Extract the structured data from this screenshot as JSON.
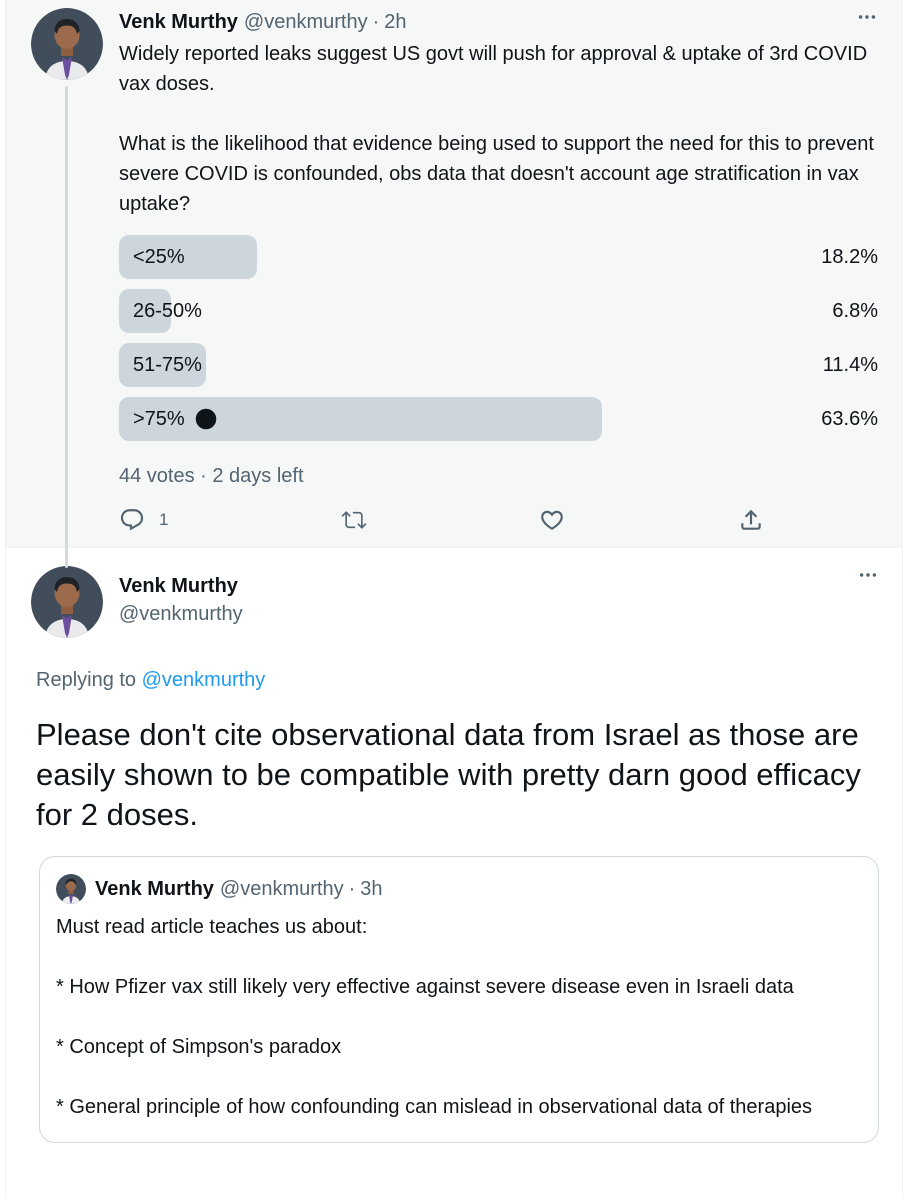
{
  "colors": {
    "link_blue": "#1d9bf0",
    "poll_bar": "#cdd6dc",
    "text_primary": "#0f1419",
    "text_secondary": "#536471",
    "hover_background": "#f6f7f7"
  },
  "tweet1": {
    "name": "Venk Murthy",
    "handle": "@venkmurthy",
    "dot": "·",
    "time": "2h",
    "body": "Widely reported leaks suggest US govt will push for approval & uptake of 3rd COVID vax doses.\n\nWhat is the likelihood that evidence being used to support the need for this to prevent severe COVID is confounded, obs data that doesn't account age stratification in vax uptake?",
    "poll": {
      "options": [
        {
          "label": "<25%",
          "pct": "18.2%",
          "value": 18.2,
          "voted": false
        },
        {
          "label": "26-50%",
          "pct": "6.8%",
          "value": 6.8,
          "voted": false
        },
        {
          "label": "51-75%",
          "pct": "11.4%",
          "value": 11.4,
          "voted": false
        },
        {
          "label": ">75%",
          "pct": "63.6%",
          "value": 63.6,
          "voted": true
        }
      ],
      "meta": "44 votes · 2 days left"
    },
    "actions": {
      "reply_count": "1"
    }
  },
  "tweet2": {
    "name": "Venk Murthy",
    "handle": "@venkmurthy",
    "replying_prefix": "Replying to",
    "replying_handle": "@venkmurthy",
    "body": "Please don't cite observational data from Israel as those are easily shown to be compatible with pretty darn good efficacy for 2 doses."
  },
  "quote": {
    "name": "Venk Murthy",
    "handle": "@venkmurthy",
    "dot": "·",
    "time": "3h",
    "body": "Must read article teaches us about:\n\n* How Pfizer vax still likely very effective against severe disease even in Israeli data\n\n* Concept of Simpson's paradox\n\n* General principle of how confounding can mislead in observational data of therapies"
  }
}
